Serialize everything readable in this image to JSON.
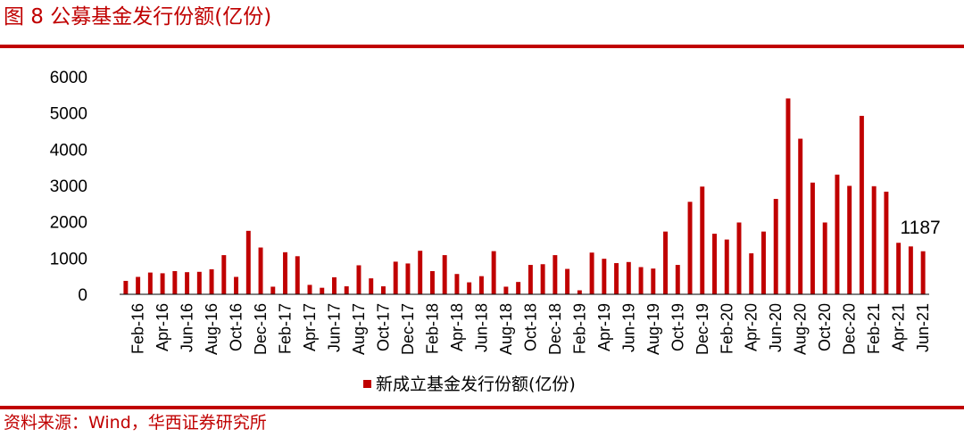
{
  "header": {
    "title": "图 8 公募基金发行份额(亿份)"
  },
  "footer": {
    "source": "资料来源：Wind，华西证券研究所"
  },
  "colors": {
    "accent": "#c00000",
    "bar": "#c00000",
    "text": "#000000"
  },
  "chart_data": {
    "type": "bar",
    "title": "图 8 公募基金发行份额(亿份)",
    "xlabel": "",
    "ylabel": "",
    "ylim": [
      0,
      6000
    ],
    "yticks": [
      "0",
      "1000",
      "2000",
      "3000",
      "4000",
      "5000",
      "6000"
    ],
    "grid": false,
    "legend_position": "bottom",
    "categories": [
      "Jan-16",
      "Feb-16",
      "Mar-16",
      "Apr-16",
      "May-16",
      "Jun-16",
      "Jul-16",
      "Aug-16",
      "Sep-16",
      "Oct-16",
      "Nov-16",
      "Dec-16",
      "Jan-17",
      "Feb-17",
      "Mar-17",
      "Apr-17",
      "May-17",
      "Jun-17",
      "Jul-17",
      "Aug-17",
      "Sep-17",
      "Oct-17",
      "Nov-17",
      "Dec-17",
      "Jan-18",
      "Feb-18",
      "Mar-18",
      "Apr-18",
      "May-18",
      "Jun-18",
      "Jul-18",
      "Aug-18",
      "Sep-18",
      "Oct-18",
      "Nov-18",
      "Dec-18",
      "Jan-19",
      "Feb-19",
      "Mar-19",
      "Apr-19",
      "May-19",
      "Jun-19",
      "Jul-19",
      "Aug-19",
      "Sep-19",
      "Oct-19",
      "Nov-19",
      "Dec-19",
      "Jan-20",
      "Feb-20",
      "Mar-20",
      "Apr-20",
      "May-20",
      "Jun-20",
      "Jul-20",
      "Aug-20",
      "Sep-20",
      "Oct-20",
      "Nov-20",
      "Dec-20",
      "Jan-21",
      "Feb-21",
      "Mar-21",
      "Apr-21",
      "May-21",
      "Jun-21"
    ],
    "tick_labels": [
      "Feb-16",
      "Apr-16",
      "Jun-16",
      "Aug-16",
      "Oct-16",
      "Dec-16",
      "Feb-17",
      "Apr-17",
      "Jun-17",
      "Aug-17",
      "Oct-17",
      "Dec-17",
      "Feb-18",
      "Apr-18",
      "Jun-18",
      "Aug-18",
      "Oct-18",
      "Dec-18",
      "Feb-19",
      "Apr-19",
      "Jun-19",
      "Aug-19",
      "Oct-19",
      "Dec-19",
      "Feb-20",
      "Apr-20",
      "Jun-20",
      "Aug-20",
      "Oct-20",
      "Dec-20",
      "Feb-21",
      "Apr-21",
      "Jun-21"
    ],
    "series": [
      {
        "name": "新成立基金发行份额(亿份)",
        "values": [
          370,
          480,
          600,
          580,
          640,
          610,
          620,
          690,
          1080,
          480,
          1750,
          1290,
          210,
          1160,
          1050,
          260,
          180,
          470,
          220,
          800,
          440,
          220,
          900,
          850,
          1200,
          640,
          1080,
          560,
          330,
          500,
          1190,
          210,
          340,
          810,
          830,
          1080,
          700,
          110,
          1150,
          980,
          860,
          890,
          750,
          710,
          1730,
          810,
          2550,
          2970,
          1670,
          1510,
          1980,
          1130,
          1730,
          2630,
          5400,
          4290,
          3080,
          1980,
          3300,
          2990,
          4920,
          2980,
          2830,
          1420,
          1320,
          1187
        ]
      }
    ],
    "annotations": [
      {
        "category": "Jun-21",
        "text": "1187"
      }
    ]
  }
}
